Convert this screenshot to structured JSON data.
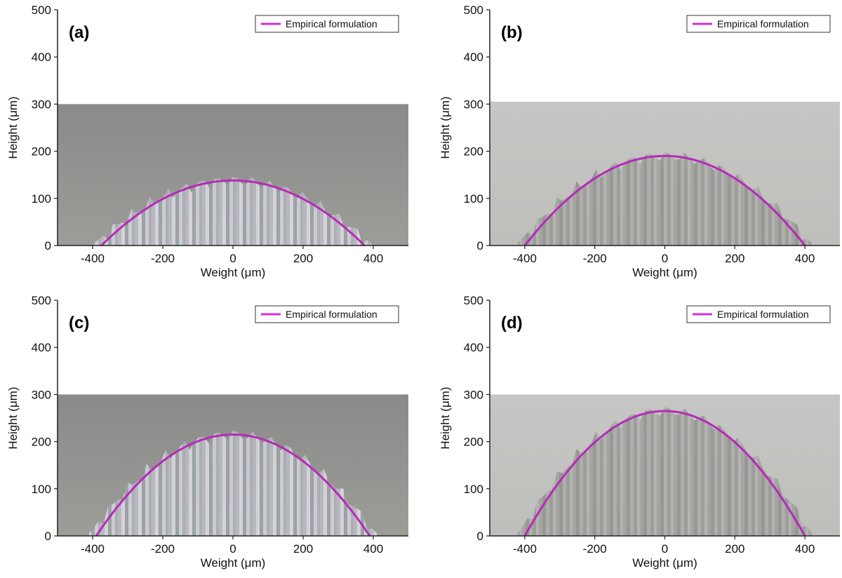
{
  "figure": {
    "name": "bead-cross-section-comparison"
  },
  "colors": {
    "curve": "#b52bb8",
    "legend_line": "#d22fd6",
    "axis": "#222222",
    "upper_bg": "#ffffff",
    "photo_bg_dark": "#8d8d8b",
    "photo_bg_light": "#c8c8c6"
  },
  "chart_data": [
    {
      "type": "line",
      "panel_label": "(a)",
      "xlabel": "Weight (μm)",
      "ylabel": "Height (μm)",
      "xlim": [
        -500,
        500
      ],
      "ylim": [
        0,
        500
      ],
      "xticks": [
        -400,
        -200,
        0,
        200,
        400
      ],
      "yticks": [
        0,
        100,
        200,
        300,
        400,
        500
      ],
      "xtick_labels": [
        "-400",
        "-200",
        "0",
        "200",
        "400"
      ],
      "ytick_labels": [
        "0",
        "100",
        "200",
        "300",
        "400",
        "500"
      ],
      "photo_top": 300,
      "photo_tone": "dark",
      "legend": {
        "position": "top-right",
        "entries": [
          "Empirical formulation"
        ]
      },
      "series": [
        {
          "name": "Empirical formulation",
          "shape": "parabola",
          "peak": 138,
          "half_width": 375
        }
      ]
    },
    {
      "type": "line",
      "panel_label": "(b)",
      "xlabel": "Weight (μm)",
      "ylabel": "Height (μm)",
      "xlim": [
        -500,
        500
      ],
      "ylim": [
        0,
        500
      ],
      "xticks": [
        -400,
        -200,
        0,
        200,
        400
      ],
      "yticks": [
        0,
        100,
        200,
        300,
        400,
        500
      ],
      "xtick_labels": [
        "-400",
        "-200",
        "0",
        "200",
        "400"
      ],
      "ytick_labels": [
        "0",
        "100",
        "200",
        "300",
        "400",
        "500"
      ],
      "photo_top": 305,
      "photo_tone": "light",
      "legend": {
        "position": "top-right",
        "entries": [
          "Empirical formulation"
        ]
      },
      "series": [
        {
          "name": "Empirical formulation",
          "shape": "parabola",
          "peak": 190,
          "half_width": 400
        }
      ]
    },
    {
      "type": "line",
      "panel_label": "(c)",
      "xlabel": "Weight (μm)",
      "ylabel": "Height (μm)",
      "xlim": [
        -500,
        500
      ],
      "ylim": [
        0,
        500
      ],
      "xticks": [
        -400,
        -200,
        0,
        200,
        400
      ],
      "yticks": [
        0,
        100,
        200,
        300,
        400,
        500
      ],
      "xtick_labels": [
        "-400",
        "-200",
        "0",
        "200",
        "400"
      ],
      "ytick_labels": [
        "0",
        "100",
        "200",
        "300",
        "400",
        "500"
      ],
      "photo_top": 300,
      "photo_tone": "dark",
      "legend": {
        "position": "top-right",
        "entries": [
          "Empirical formulation"
        ]
      },
      "series": [
        {
          "name": "Empirical formulation",
          "shape": "parabola",
          "peak": 215,
          "half_width": 390
        }
      ]
    },
    {
      "type": "line",
      "panel_label": "(d)",
      "xlabel": "Weight (μm)",
      "ylabel": "Height (μm)",
      "xlim": [
        -500,
        500
      ],
      "ylim": [
        0,
        500
      ],
      "xticks": [
        -400,
        -200,
        0,
        200,
        400
      ],
      "yticks": [
        0,
        100,
        200,
        300,
        400,
        500
      ],
      "xtick_labels": [
        "-400",
        "-200",
        "0",
        "200",
        "400"
      ],
      "ytick_labels": [
        "0",
        "100",
        "200",
        "300",
        "400",
        "500"
      ],
      "photo_top": 300,
      "photo_tone": "light",
      "legend": {
        "position": "top-right",
        "entries": [
          "Empirical formulation"
        ]
      },
      "series": [
        {
          "name": "Empirical formulation",
          "shape": "parabola",
          "peak": 265,
          "half_width": 400
        }
      ]
    }
  ]
}
